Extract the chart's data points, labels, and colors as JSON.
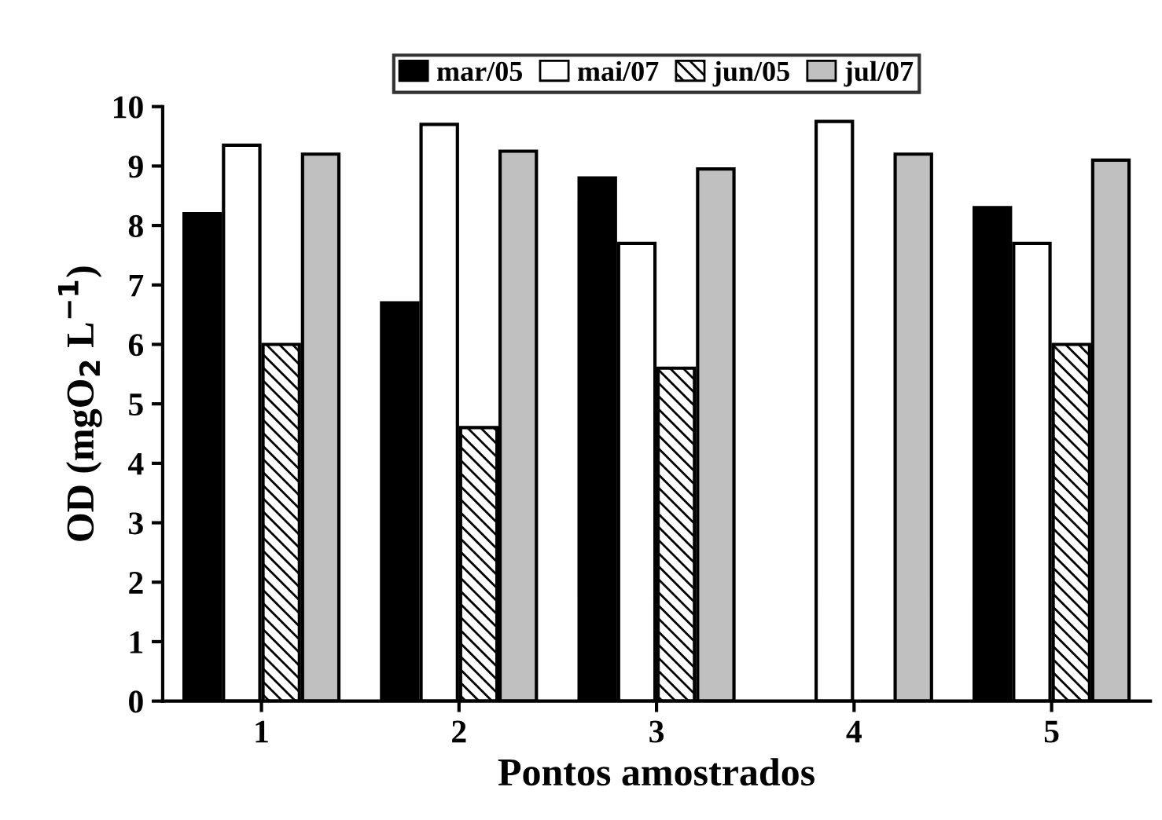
{
  "chart_data": {
    "type": "bar",
    "xlabel": "Pontos amostrados",
    "ylabel": "OD (mgO$_{2}$ L$^{−1}$)",
    "categories": [
      "1",
      "2",
      "3",
      "4",
      "5"
    ],
    "series": [
      {
        "name": "mar/05",
        "color": "#000000",
        "values": [
          8.2,
          6.7,
          8.8,
          null,
          8.3
        ]
      },
      {
        "name": "mai/07",
        "color": "#ffffff",
        "values": [
          9.35,
          9.7,
          7.7,
          9.75,
          7.7
        ]
      },
      {
        "name": "jun/05",
        "color": "#000000",
        "values": [
          6.0,
          4.6,
          5.6,
          null,
          6.0
        ]
      },
      {
        "name": "jul/07",
        "color": "#c0c0c0",
        "values": [
          9.2,
          9.25,
          8.95,
          9.2,
          9.1
        ]
      }
    ],
    "ylim": [
      0,
      10
    ],
    "yticks": [
      0,
      1,
      2,
      3,
      4,
      5,
      6,
      7,
      8,
      9,
      10
    ],
    "grid": false,
    "legend": "top"
  }
}
